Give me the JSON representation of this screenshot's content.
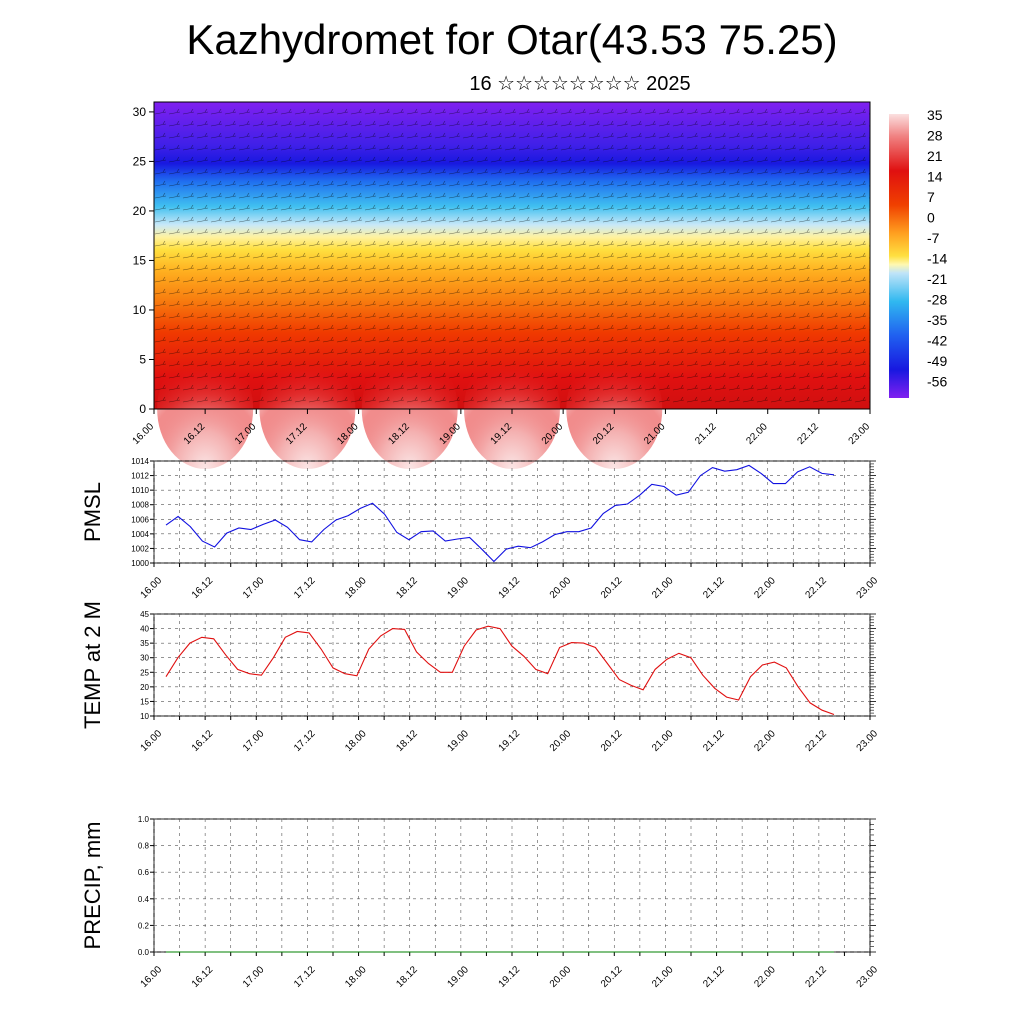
{
  "header": {
    "title": "Kazhydromet for Otar(43.53 75.25)",
    "subtitle": "16 ☆☆☆☆☆☆☆☆ 2025"
  },
  "colors": {
    "pmsl_line": "#1010e0",
    "temp_line": "#e01010",
    "precip_line": "#008000",
    "grid": "#555555"
  },
  "x_ticks": [
    "16.00",
    "16.12",
    "17.00",
    "17.12",
    "18.00",
    "18.12",
    "19.00",
    "19.12",
    "20.00",
    "20.12",
    "21.00",
    "21.12",
    "22.00",
    "22.12",
    "23.00"
  ],
  "chart_data": [
    {
      "type": "heatmap",
      "title": "",
      "xlabel": "",
      "ylabel": "",
      "y_ticks": [
        0,
        5,
        10,
        15,
        20,
        25,
        30
      ],
      "ylim": [
        0,
        31
      ],
      "colorbar_labels": [
        "35",
        "28",
        "21",
        "14",
        "7",
        "0",
        "-7",
        "-14",
        "-21",
        "-28",
        "-35",
        "-42",
        "-49",
        "-56"
      ],
      "colorbar_colors": [
        "#fbe0e0",
        "#f3a0a0",
        "#e83030",
        "#e01010",
        "#f04000",
        "#f87010",
        "#ffa020",
        "#ffd840",
        "#fff8a0",
        "#b8e0f8",
        "#40c0f0",
        "#2080f0",
        "#2020e8",
        "#8020f0"
      ],
      "description_values": "Temperature cross-section: warm (red/pink) near surface, yellow ~16, blue ~20-25, violet above 26"
    },
    {
      "type": "line",
      "ylabel": "PMSL",
      "ylim": [
        1000,
        1014
      ],
      "y_ticks": [
        1000,
        1002,
        1004,
        1006,
        1008,
        1010,
        1012,
        1014
      ],
      "values": [
        1005.2,
        1006.4,
        1005.0,
        1003.0,
        1002.2,
        1004.1,
        1004.8,
        1004.6,
        1005.3,
        1005.9,
        1004.9,
        1003.2,
        1002.9,
        1004.6,
        1005.9,
        1006.5,
        1007.5,
        1008.2,
        1006.7,
        1004.2,
        1003.2,
        1004.3,
        1004.4,
        1003.0,
        1003.3,
        1003.5,
        1001.9,
        1000.2,
        1001.9,
        1002.3,
        1002.1,
        1002.9,
        1003.9,
        1004.3,
        1004.3,
        1004.8,
        1006.8,
        1007.9,
        1008.1,
        1009.3,
        1010.8,
        1010.5,
        1009.3,
        1009.7,
        1012.0,
        1013.1,
        1012.6,
        1012.8,
        1013.4,
        1012.3,
        1010.9,
        1010.9,
        1012.5,
        1013.2,
        1012.3,
        1012.1
      ],
      "x_range": [
        16.0,
        23.0
      ]
    },
    {
      "type": "line",
      "ylabel": "TEMP at 2 M",
      "ylim": [
        10,
        45
      ],
      "y_ticks": [
        10,
        15,
        20,
        25,
        30,
        35,
        40,
        45
      ],
      "values": [
        23.5,
        30.0,
        35.0,
        37.0,
        36.5,
        31.0,
        26.0,
        24.5,
        24.0,
        30.0,
        37.0,
        39.0,
        38.5,
        33.0,
        26.5,
        24.5,
        23.8,
        33.0,
        37.5,
        40.0,
        39.7,
        32.0,
        28.0,
        25.0,
        25.0,
        34.0,
        39.5,
        40.8,
        40.0,
        34.0,
        30.5,
        26.0,
        24.5,
        33.5,
        35.2,
        35.0,
        33.5,
        28.0,
        22.5,
        20.5,
        19.0,
        26.0,
        29.5,
        31.5,
        30.0,
        24.0,
        19.5,
        16.5,
        15.5,
        23.5,
        27.5,
        28.5,
        26.5,
        20.0,
        14.5,
        12.0,
        10.5
      ],
      "x_range": [
        16.0,
        23.0
      ]
    },
    {
      "type": "line",
      "ylabel": "PRECIP, mm",
      "ylim": [
        0.0,
        1.0
      ],
      "y_ticks": [
        "0.0",
        "0.2",
        "0.4",
        "0.6",
        "0.8",
        "1.0"
      ],
      "values": [
        0,
        0,
        0,
        0,
        0,
        0,
        0,
        0,
        0,
        0,
        0,
        0,
        0,
        0,
        0,
        0,
        0,
        0,
        0,
        0,
        0,
        0,
        0,
        0,
        0,
        0,
        0,
        0,
        0,
        0,
        0,
        0,
        0,
        0,
        0,
        0,
        0,
        0,
        0,
        0,
        0,
        0,
        0,
        0,
        0,
        0,
        0,
        0,
        0,
        0,
        0,
        0,
        0,
        0,
        0,
        0,
        0
      ],
      "x_range": [
        16.0,
        23.0
      ]
    }
  ]
}
